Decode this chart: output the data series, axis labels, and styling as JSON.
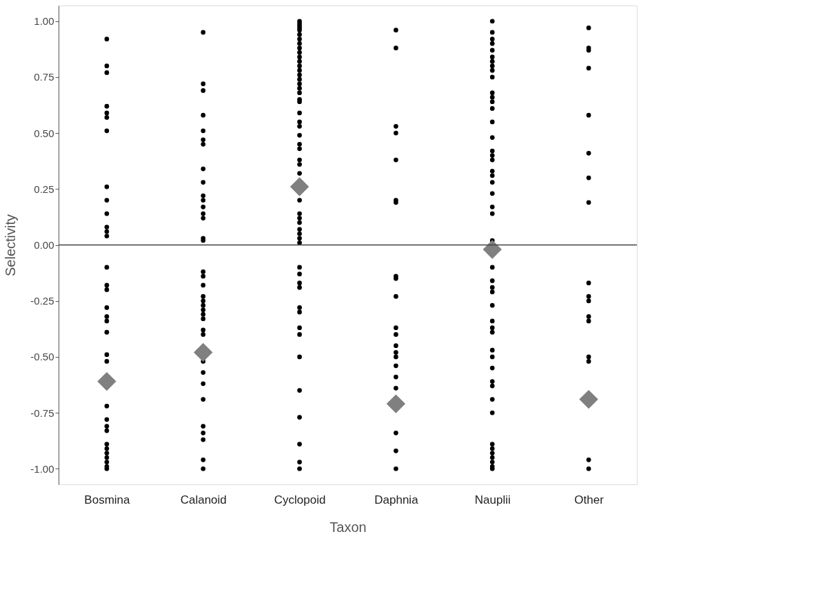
{
  "chart_data": {
    "type": "scatter",
    "xlabel": "Taxon",
    "ylabel": "Selectivity",
    "categories": [
      "Bosmina",
      "Calanoid",
      "Cyclopoid",
      "Daphnia",
      "Nauplii",
      "Other"
    ],
    "ylim": [
      -1.07,
      1.07
    ],
    "yticks": [
      {
        "value": -1,
        "label": "-1.00"
      },
      {
        "value": -0.75,
        "label": "-0.75"
      },
      {
        "value": -0.5,
        "label": "-0.50"
      },
      {
        "value": -0.25,
        "label": "-0.25"
      },
      {
        "value": 0,
        "label": "0.00"
      },
      {
        "value": 0.25,
        "label": "0.25"
      },
      {
        "value": 0.5,
        "label": "0.50"
      },
      {
        "value": 0.75,
        "label": "0.75"
      },
      {
        "value": 1,
        "label": "1.00"
      }
    ],
    "grid": false,
    "ref_lines": [
      {
        "axis": "y",
        "value": 0,
        "color": "#404040"
      }
    ],
    "series": [
      {
        "color": "#000000",
        "marker": "circle",
        "x": [
          "Bosmina",
          "Bosmina",
          "Bosmina",
          "Bosmina",
          "Bosmina",
          "Bosmina",
          "Bosmina",
          "Bosmina",
          "Bosmina",
          "Bosmina",
          "Bosmina",
          "Bosmina",
          "Bosmina",
          "Bosmina",
          "Bosmina",
          "Bosmina",
          "Bosmina",
          "Bosmina",
          "Bosmina",
          "Bosmina",
          "Bosmina",
          "Bosmina",
          "Bosmina",
          "Bosmina",
          "Bosmina",
          "Bosmina",
          "Bosmina",
          "Bosmina",
          "Bosmina",
          "Bosmina",
          "Bosmina",
          "Bosmina",
          "Bosmina",
          "Calanoid",
          "Calanoid",
          "Calanoid",
          "Calanoid",
          "Calanoid",
          "Calanoid",
          "Calanoid",
          "Calanoid",
          "Calanoid",
          "Calanoid",
          "Calanoid",
          "Calanoid",
          "Calanoid",
          "Calanoid",
          "Calanoid",
          "Calanoid",
          "Calanoid",
          "Calanoid",
          "Calanoid",
          "Calanoid",
          "Calanoid",
          "Calanoid",
          "Calanoid",
          "Calanoid",
          "Calanoid",
          "Calanoid",
          "Calanoid",
          "Calanoid",
          "Calanoid",
          "Calanoid",
          "Calanoid",
          "Calanoid",
          "Calanoid",
          "Calanoid",
          "Calanoid",
          "Calanoid",
          "Cyclopoid",
          "Cyclopoid",
          "Cyclopoid",
          "Cyclopoid",
          "Cyclopoid",
          "Cyclopoid",
          "Cyclopoid",
          "Cyclopoid",
          "Cyclopoid",
          "Cyclopoid",
          "Cyclopoid",
          "Cyclopoid",
          "Cyclopoid",
          "Cyclopoid",
          "Cyclopoid",
          "Cyclopoid",
          "Cyclopoid",
          "Cyclopoid",
          "Cyclopoid",
          "Cyclopoid",
          "Cyclopoid",
          "Cyclopoid",
          "Cyclopoid",
          "Cyclopoid",
          "Cyclopoid",
          "Cyclopoid",
          "Cyclopoid",
          "Cyclopoid",
          "Cyclopoid",
          "Cyclopoid",
          "Cyclopoid",
          "Cyclopoid",
          "Cyclopoid",
          "Cyclopoid",
          "Cyclopoid",
          "Cyclopoid",
          "Cyclopoid",
          "Cyclopoid",
          "Cyclopoid",
          "Cyclopoid",
          "Cyclopoid",
          "Cyclopoid",
          "Cyclopoid",
          "Cyclopoid",
          "Cyclopoid",
          "Cyclopoid",
          "Cyclopoid",
          "Cyclopoid",
          "Cyclopoid",
          "Cyclopoid",
          "Cyclopoid",
          "Cyclopoid",
          "Daphnia",
          "Daphnia",
          "Daphnia",
          "Daphnia",
          "Daphnia",
          "Daphnia",
          "Daphnia",
          "Daphnia",
          "Daphnia",
          "Daphnia",
          "Daphnia",
          "Daphnia",
          "Daphnia",
          "Daphnia",
          "Daphnia",
          "Daphnia",
          "Daphnia",
          "Daphnia",
          "Daphnia",
          "Daphnia",
          "Daphnia",
          "Nauplii",
          "Nauplii",
          "Nauplii",
          "Nauplii",
          "Nauplii",
          "Nauplii",
          "Nauplii",
          "Nauplii",
          "Nauplii",
          "Nauplii",
          "Nauplii",
          "Nauplii",
          "Nauplii",
          "Nauplii",
          "Nauplii",
          "Nauplii",
          "Nauplii",
          "Nauplii",
          "Nauplii",
          "Nauplii",
          "Nauplii",
          "Nauplii",
          "Nauplii",
          "Nauplii",
          "Nauplii",
          "Nauplii",
          "Nauplii",
          "Nauplii",
          "Nauplii",
          "Nauplii",
          "Nauplii",
          "Nauplii",
          "Nauplii",
          "Nauplii",
          "Nauplii",
          "Nauplii",
          "Nauplii",
          "Nauplii",
          "Nauplii",
          "Nauplii",
          "Nauplii",
          "Nauplii",
          "Nauplii",
          "Nauplii",
          "Nauplii",
          "Nauplii",
          "Nauplii",
          "Nauplii",
          "Other",
          "Other",
          "Other",
          "Other",
          "Other",
          "Other",
          "Other",
          "Other",
          "Other",
          "Other",
          "Other",
          "Other",
          "Other",
          "Other",
          "Other",
          "Other",
          "Other"
        ],
        "values": [
          0.92,
          0.8,
          0.77,
          0.62,
          0.59,
          0.57,
          0.51,
          0.26,
          0.2,
          0.14,
          0.08,
          0.06,
          0.04,
          -0.1,
          -0.18,
          -0.2,
          -0.28,
          -0.32,
          -0.34,
          -0.39,
          -0.49,
          -0.52,
          -0.72,
          -0.78,
          -0.81,
          -0.83,
          -0.89,
          -0.91,
          -0.93,
          -0.95,
          -0.97,
          -0.99,
          -1.0,
          0.95,
          0.72,
          0.69,
          0.58,
          0.51,
          0.47,
          0.45,
          0.34,
          0.28,
          0.22,
          0.2,
          0.17,
          0.14,
          0.12,
          0.03,
          0.02,
          -0.12,
          -0.14,
          -0.18,
          -0.23,
          -0.25,
          -0.27,
          -0.29,
          -0.31,
          -0.33,
          -0.38,
          -0.4,
          -0.52,
          -0.57,
          -0.62,
          -0.69,
          -0.81,
          -0.84,
          -0.87,
          -0.96,
          -1.0,
          1.0,
          0.99,
          0.98,
          0.97,
          0.96,
          0.94,
          0.92,
          0.9,
          0.88,
          0.86,
          0.84,
          0.82,
          0.8,
          0.78,
          0.76,
          0.74,
          0.72,
          0.7,
          0.68,
          0.65,
          0.64,
          0.59,
          0.55,
          0.53,
          0.49,
          0.45,
          0.43,
          0.38,
          0.36,
          0.32,
          0.2,
          0.14,
          0.12,
          0.1,
          0.07,
          0.05,
          0.03,
          0.01,
          -0.1,
          -0.13,
          -0.17,
          -0.19,
          -0.28,
          -0.3,
          -0.37,
          -0.4,
          -0.5,
          -0.65,
          -0.77,
          -0.89,
          -0.97,
          -1.0,
          0.96,
          0.88,
          0.53,
          0.5,
          0.38,
          0.2,
          0.19,
          -0.14,
          -0.15,
          -0.23,
          -0.37,
          -0.4,
          -0.45,
          -0.48,
          -0.5,
          -0.54,
          -0.59,
          -0.64,
          -0.84,
          -0.92,
          -1.0,
          1.0,
          0.95,
          0.92,
          0.9,
          0.87,
          0.84,
          0.82,
          0.8,
          0.78,
          0.75,
          0.68,
          0.66,
          0.64,
          0.61,
          0.55,
          0.48,
          0.42,
          0.4,
          0.38,
          0.33,
          0.31,
          0.28,
          0.23,
          0.17,
          0.14,
          0.02,
          -0.1,
          -0.16,
          -0.19,
          -0.21,
          -0.27,
          -0.34,
          -0.37,
          -0.39,
          -0.47,
          -0.5,
          -0.55,
          -0.61,
          -0.63,
          -0.69,
          -0.75,
          -0.89,
          -0.91,
          -0.93,
          -0.95,
          -0.97,
          -0.99,
          -1.0,
          0.97,
          0.88,
          0.87,
          0.79,
          0.58,
          0.41,
          0.3,
          0.19,
          -0.17,
          -0.23,
          -0.25,
          -0.32,
          -0.34,
          -0.5,
          -0.52,
          -0.96,
          -1.0
        ]
      },
      {
        "color": "#808080",
        "marker": "diamond",
        "x": [
          "Bosmina",
          "Calanoid",
          "Cyclopoid",
          "Daphnia",
          "Nauplii",
          "Other"
        ],
        "values": [
          -0.61,
          -0.48,
          0.26,
          -0.71,
          -0.02,
          -0.69
        ]
      }
    ]
  }
}
